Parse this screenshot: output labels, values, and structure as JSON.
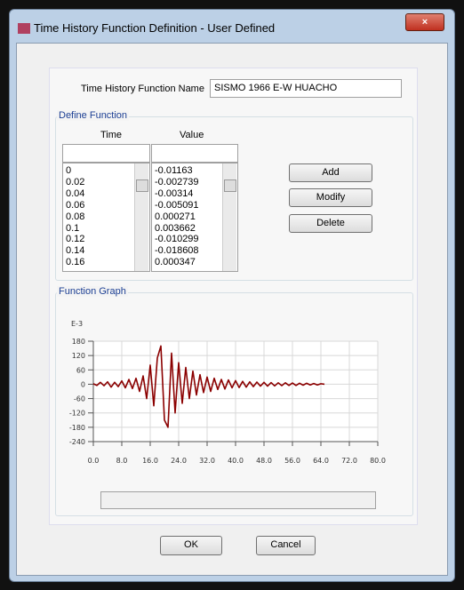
{
  "window": {
    "title": "Time History Function Definition  - User Defined"
  },
  "name_field": {
    "label": "Time History Function Name",
    "value": "SISMO 1966  E-W  HUACHO"
  },
  "define_function": {
    "title": "Define Function",
    "columns": [
      "Time",
      "Value"
    ],
    "rows": [
      [
        "0",
        "-0.01163"
      ],
      [
        "0.02",
        "-0.002739"
      ],
      [
        "0.04",
        "-0.00314"
      ],
      [
        "0.06",
        "-0.005091"
      ],
      [
        "0.08",
        "0.000271"
      ],
      [
        "0.1",
        "0.003662"
      ],
      [
        "0.12",
        "-0.010299"
      ],
      [
        "0.14",
        "-0.018608"
      ],
      [
        "0.16",
        "0.000347"
      ]
    ]
  },
  "buttons": {
    "add": "Add",
    "modify": "Modify",
    "delete": "Delete",
    "ok": "OK",
    "cancel": "Cancel"
  },
  "chart_data": {
    "type": "line",
    "title": "Function Graph",
    "y_unit_label": "E-3",
    "x": [
      0,
      1,
      2,
      3,
      4,
      5,
      6,
      7,
      8,
      9,
      10,
      11,
      12,
      13,
      14,
      15,
      16,
      17,
      18,
      19,
      20,
      21,
      22,
      23,
      24,
      25,
      26,
      27,
      28,
      29,
      30,
      31,
      32,
      33,
      34,
      35,
      36,
      37,
      38,
      39,
      40,
      41,
      42,
      43,
      44,
      45,
      46,
      47,
      48,
      49,
      50,
      51,
      52,
      53,
      54,
      55,
      56,
      57,
      58,
      59,
      60,
      61,
      62,
      63,
      64,
      65
    ],
    "series": [
      {
        "color": "#8b0000",
        "values": [
          2,
          -5,
          8,
          -6,
          10,
          -12,
          8,
          -10,
          14,
          -15,
          20,
          -18,
          25,
          -30,
          35,
          -60,
          80,
          -90,
          110,
          160,
          -150,
          -180,
          130,
          -120,
          90,
          -80,
          70,
          -60,
          55,
          -45,
          40,
          -35,
          30,
          -30,
          25,
          -22,
          20,
          -20,
          18,
          -15,
          15,
          -14,
          12,
          -12,
          10,
          -10,
          9,
          -8,
          8,
          -8,
          7,
          -7,
          6,
          -6,
          6,
          -5,
          5,
          -5,
          4,
          -4,
          4,
          -3,
          3,
          -3,
          2,
          0
        ]
      }
    ],
    "xlim": [
      0,
      80
    ],
    "ylim": [
      -240,
      180
    ],
    "xticks": [
      {
        "value": 0,
        "label": "0.0"
      },
      {
        "value": 8,
        "label": "8.0"
      },
      {
        "value": 16,
        "label": "16.0"
      },
      {
        "value": 24,
        "label": "24.0"
      },
      {
        "value": 32,
        "label": "32.0"
      },
      {
        "value": 40,
        "label": "40.0"
      },
      {
        "value": 48,
        "label": "48.0"
      },
      {
        "value": 56,
        "label": "56.0"
      },
      {
        "value": 64,
        "label": "64.0"
      },
      {
        "value": 72,
        "label": "72.0"
      },
      {
        "value": 80,
        "label": "80.0"
      }
    ],
    "yticks": [
      180,
      120,
      60,
      0,
      -60,
      -120,
      -180,
      -240
    ],
    "grid": true
  }
}
